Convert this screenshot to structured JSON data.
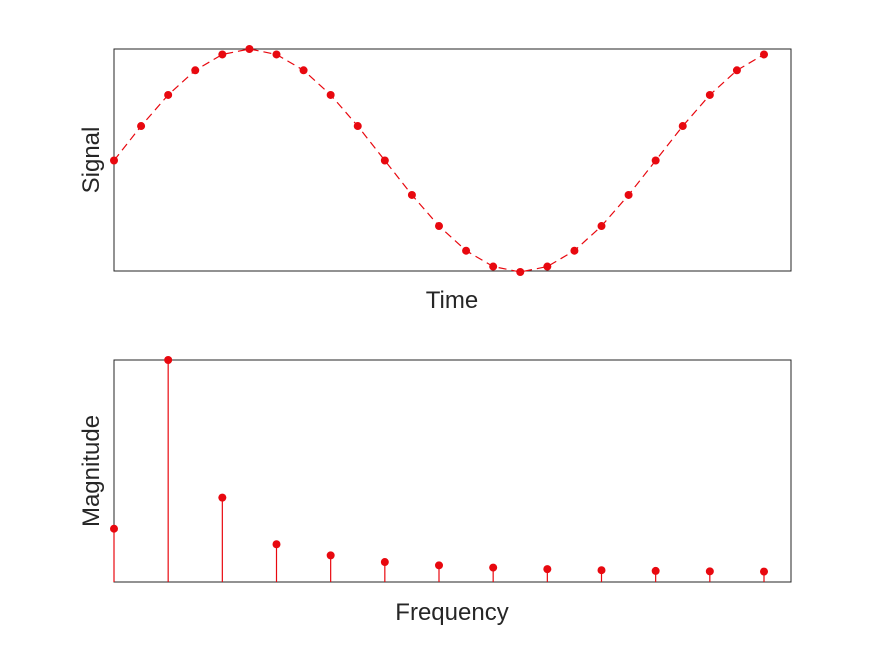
{
  "colors": {
    "series": "#e8080f",
    "axis": "#262626",
    "background": "#ffffff"
  },
  "chart_data": [
    {
      "type": "line",
      "marker": "circle",
      "line_style": "dashed",
      "title": "",
      "xlabel": "Time",
      "ylabel": "Signal",
      "xticks": "none",
      "yticks": "none",
      "grid": false,
      "xlim": [
        0,
        24
      ],
      "ylim": [
        -1,
        1
      ],
      "x": [
        0,
        1,
        2,
        3,
        4,
        5,
        6,
        7,
        8,
        9,
        10,
        11,
        12,
        13,
        14,
        15,
        16,
        17,
        18,
        19,
        20,
        21,
        22,
        23,
        24
      ],
      "values": [
        0,
        0.309,
        0.588,
        0.809,
        0.951,
        1.0,
        0.951,
        0.809,
        0.588,
        0.309,
        0,
        -0.309,
        -0.588,
        -0.809,
        -0.951,
        -1.0,
        -0.951,
        -0.809,
        -0.588,
        -0.309,
        0,
        0.309,
        0.588,
        0.809,
        0.951
      ]
    },
    {
      "type": "stem",
      "marker": "circle",
      "title": "",
      "xlabel": "Frequency",
      "ylabel": "Magnitude",
      "xticks": "none",
      "yticks": "none",
      "grid": false,
      "xlim": [
        0,
        12.5
      ],
      "ylim": [
        0,
        1
      ],
      "x": [
        0,
        1,
        2,
        3,
        4,
        5,
        6,
        7,
        8,
        9,
        10,
        11,
        12
      ],
      "values": [
        0.24,
        1.0,
        0.38,
        0.17,
        0.12,
        0.09,
        0.075,
        0.065,
        0.058,
        0.053,
        0.05,
        0.048,
        0.047
      ]
    }
  ]
}
